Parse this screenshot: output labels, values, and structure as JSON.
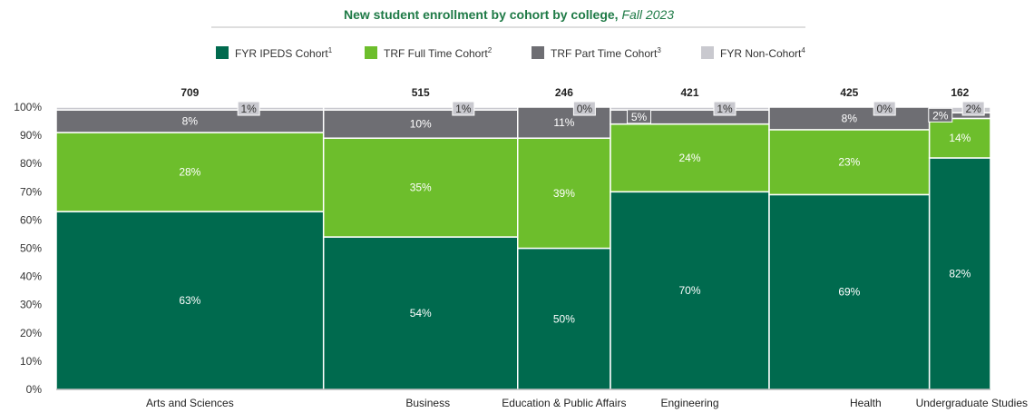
{
  "chart_data": {
    "type": "bar",
    "subtype": "marimekko",
    "title": "New student enrollment by cohort by college,",
    "title_suffix": "Fall 2023",
    "categories": [
      "Arts and Sciences",
      "Business",
      "Education & Public Affairs",
      "Engineering",
      "Health",
      "Undergraduate Studies"
    ],
    "totals": [
      709,
      515,
      246,
      421,
      425,
      162
    ],
    "series": [
      {
        "name": "FYR IPEDS Cohort",
        "legend_sup": "1",
        "color": "#006a4e",
        "label_color": "#ffffff",
        "values": [
          63,
          54,
          50,
          70,
          69,
          82
        ],
        "labels": [
          "63%",
          "54%",
          "50%",
          "70%",
          "69%",
          "82%"
        ]
      },
      {
        "name": "TRF Full Time Cohort",
        "legend_sup": "2",
        "color": "#6dbe2c",
        "label_color": "#ffffff",
        "values": [
          28,
          35,
          39,
          24,
          23,
          14
        ],
        "labels": [
          "28%",
          "35%",
          "39%",
          "24%",
          "23%",
          "14%"
        ]
      },
      {
        "name": "TRF Part Time Cohort",
        "legend_sup": "3",
        "color": "#6e6e73",
        "label_color": "#ffffff",
        "values": [
          8,
          10,
          11,
          5,
          8,
          2
        ],
        "labels": [
          "8%",
          "10%",
          "11%",
          "5%",
          "8%",
          "2%"
        ]
      },
      {
        "name": "FYR Non-Cohort",
        "legend_sup": "4",
        "color": "#c9c9cf",
        "label_color": "#333333",
        "values": [
          1,
          1,
          0,
          1,
          0,
          2
        ],
        "labels": [
          "1%",
          "1%",
          "0%",
          "1%",
          "0%",
          "2%"
        ]
      }
    ],
    "y_ticks": [
      "0%",
      "10%",
      "20%",
      "30%",
      "40%",
      "50%",
      "60%",
      "70%",
      "80%",
      "90%",
      "100%"
    ],
    "ylim": [
      0,
      100
    ],
    "legend_position": "top",
    "grid": false,
    "colors": {
      "title": "#1e7a46"
    }
  }
}
